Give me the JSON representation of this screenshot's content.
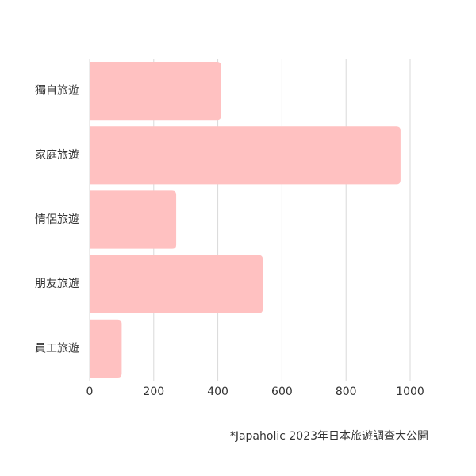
{
  "chart_data": {
    "type": "bar",
    "orientation": "horizontal",
    "categories": [
      "獨自旅遊",
      "家庭旅遊",
      "情侶旅遊",
      "朋友旅遊",
      "員工旅遊"
    ],
    "values": [
      410,
      970,
      270,
      540,
      100
    ],
    "color": "#ffc1c1",
    "xlim": [
      0,
      1000
    ],
    "xticks": [
      0,
      200,
      400,
      600,
      800,
      1000
    ],
    "grid": true,
    "source": "*Japaholic 2023年日本旅遊調查大公開"
  }
}
